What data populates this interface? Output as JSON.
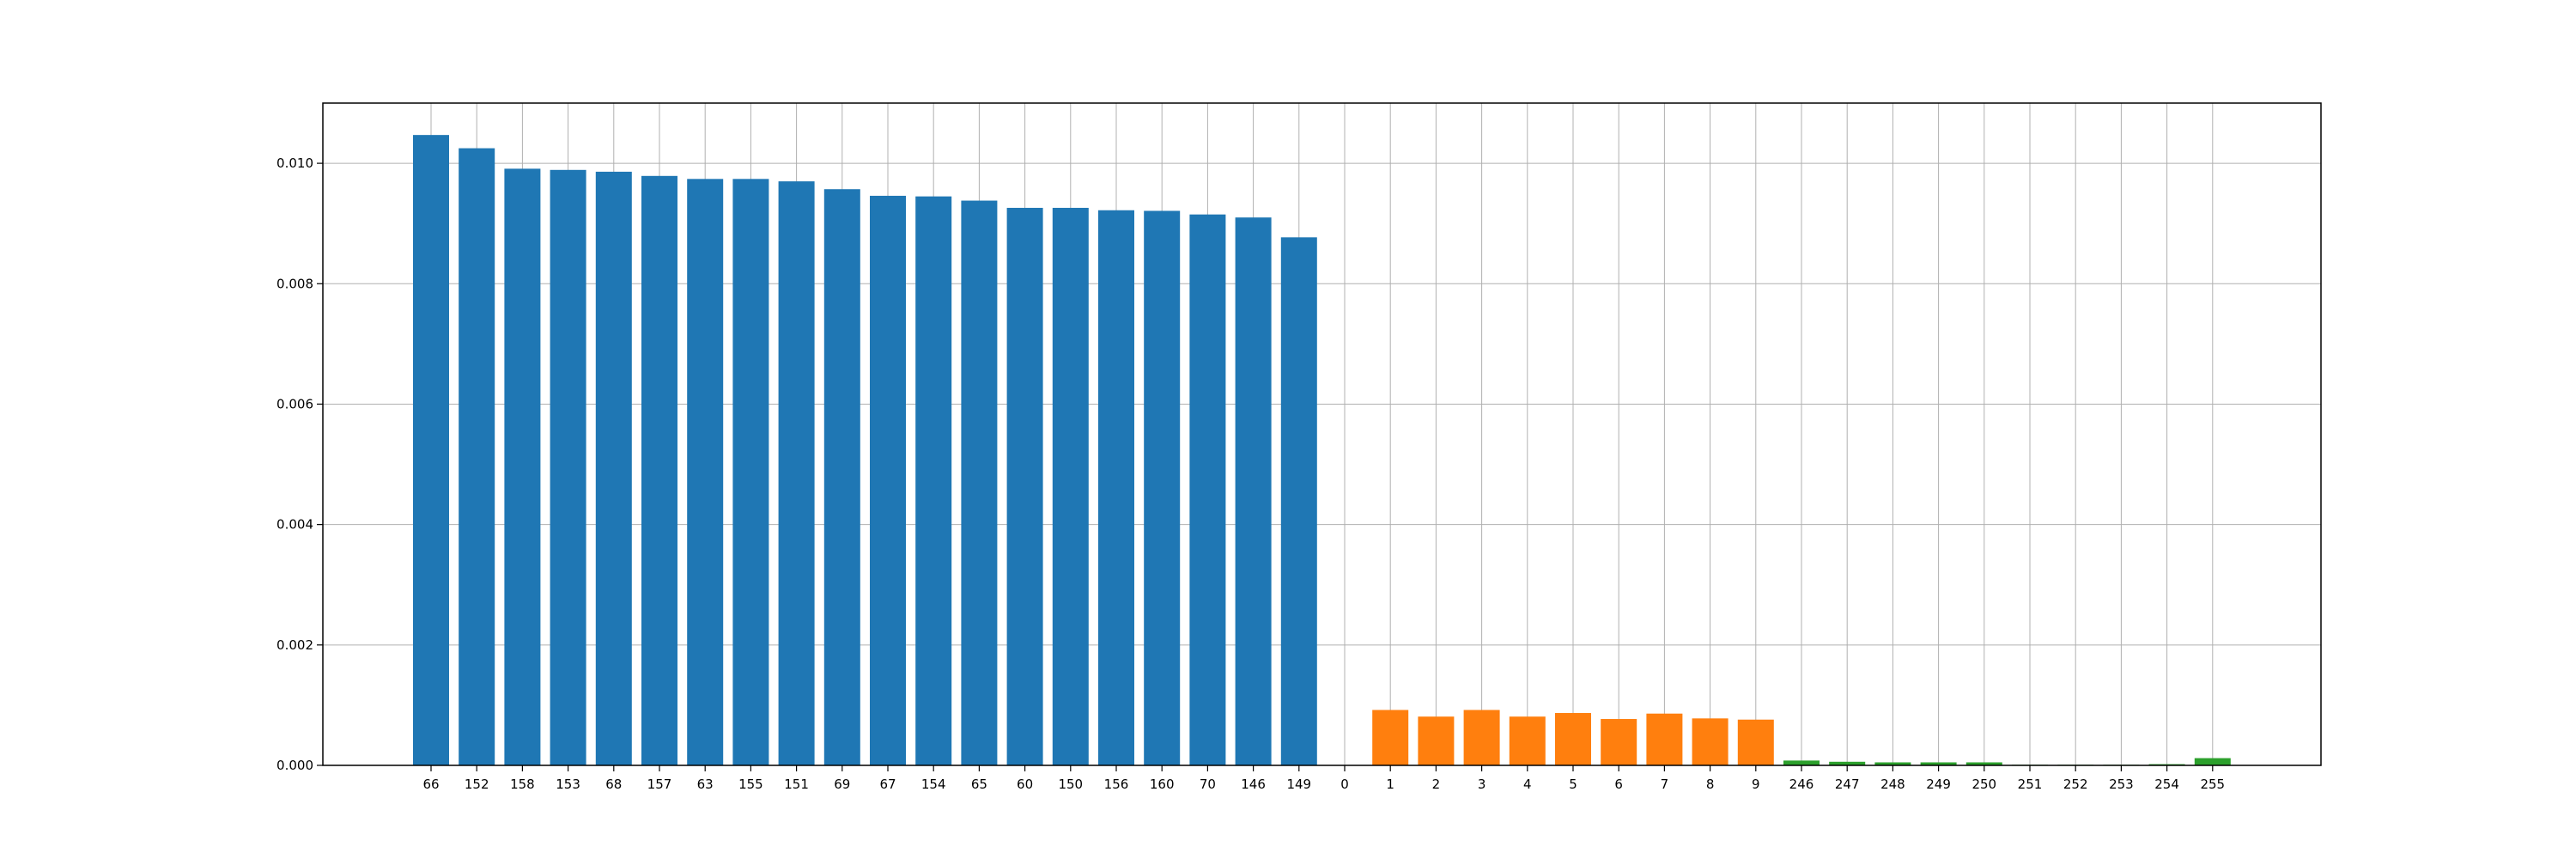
{
  "chart_data": {
    "type": "bar",
    "title": "",
    "xlabel": "",
    "ylabel": "",
    "ylim": [
      0,
      0.011
    ],
    "yticks": [
      "0.000",
      "0.002",
      "0.004",
      "0.006",
      "0.008",
      "0.010"
    ],
    "grid": true,
    "legend": "none",
    "categories": [
      "66",
      "152",
      "158",
      "153",
      "68",
      "157",
      "63",
      "155",
      "151",
      "69",
      "67",
      "154",
      "65",
      "60",
      "150",
      "156",
      "160",
      "70",
      "146",
      "149",
      "0",
      "1",
      "2",
      "3",
      "4",
      "5",
      "6",
      "7",
      "8",
      "9",
      "246",
      "247",
      "248",
      "249",
      "250",
      "251",
      "252",
      "253",
      "254",
      "255"
    ],
    "series": [
      {
        "color": "#1f77b4",
        "values": [
          0.01047,
          0.01025,
          0.00991,
          0.00989,
          0.00986,
          0.00979,
          0.00974,
          0.00974,
          0.0097,
          0.00957,
          0.00946,
          0.00945,
          0.00938,
          0.00926,
          0.00926,
          0.00922,
          0.00921,
          0.00915,
          0.0091,
          0.00877,
          null,
          null,
          null,
          null,
          null,
          null,
          null,
          null,
          null,
          null,
          null,
          null,
          null,
          null,
          null,
          null,
          null,
          null,
          null,
          null
        ]
      },
      {
        "color": "#ff7f0e",
        "values": [
          null,
          null,
          null,
          null,
          null,
          null,
          null,
          null,
          null,
          null,
          null,
          null,
          null,
          null,
          null,
          null,
          null,
          null,
          null,
          null,
          0.0,
          0.00092,
          0.00081,
          0.00092,
          0.00081,
          0.00087,
          0.00077,
          0.00086,
          0.00078,
          0.00076,
          null,
          null,
          null,
          null,
          null,
          null,
          null,
          null,
          null,
          null
        ]
      },
      {
        "color": "#2ca02c",
        "values": [
          null,
          null,
          null,
          null,
          null,
          null,
          null,
          null,
          null,
          null,
          null,
          null,
          null,
          null,
          null,
          null,
          null,
          null,
          null,
          null,
          null,
          null,
          null,
          null,
          null,
          null,
          null,
          null,
          null,
          null,
          8e-05,
          6e-05,
          5e-05,
          5e-05,
          5e-05,
          1e-05,
          1e-05,
          1e-05,
          2e-05,
          0.00012
        ]
      }
    ]
  }
}
